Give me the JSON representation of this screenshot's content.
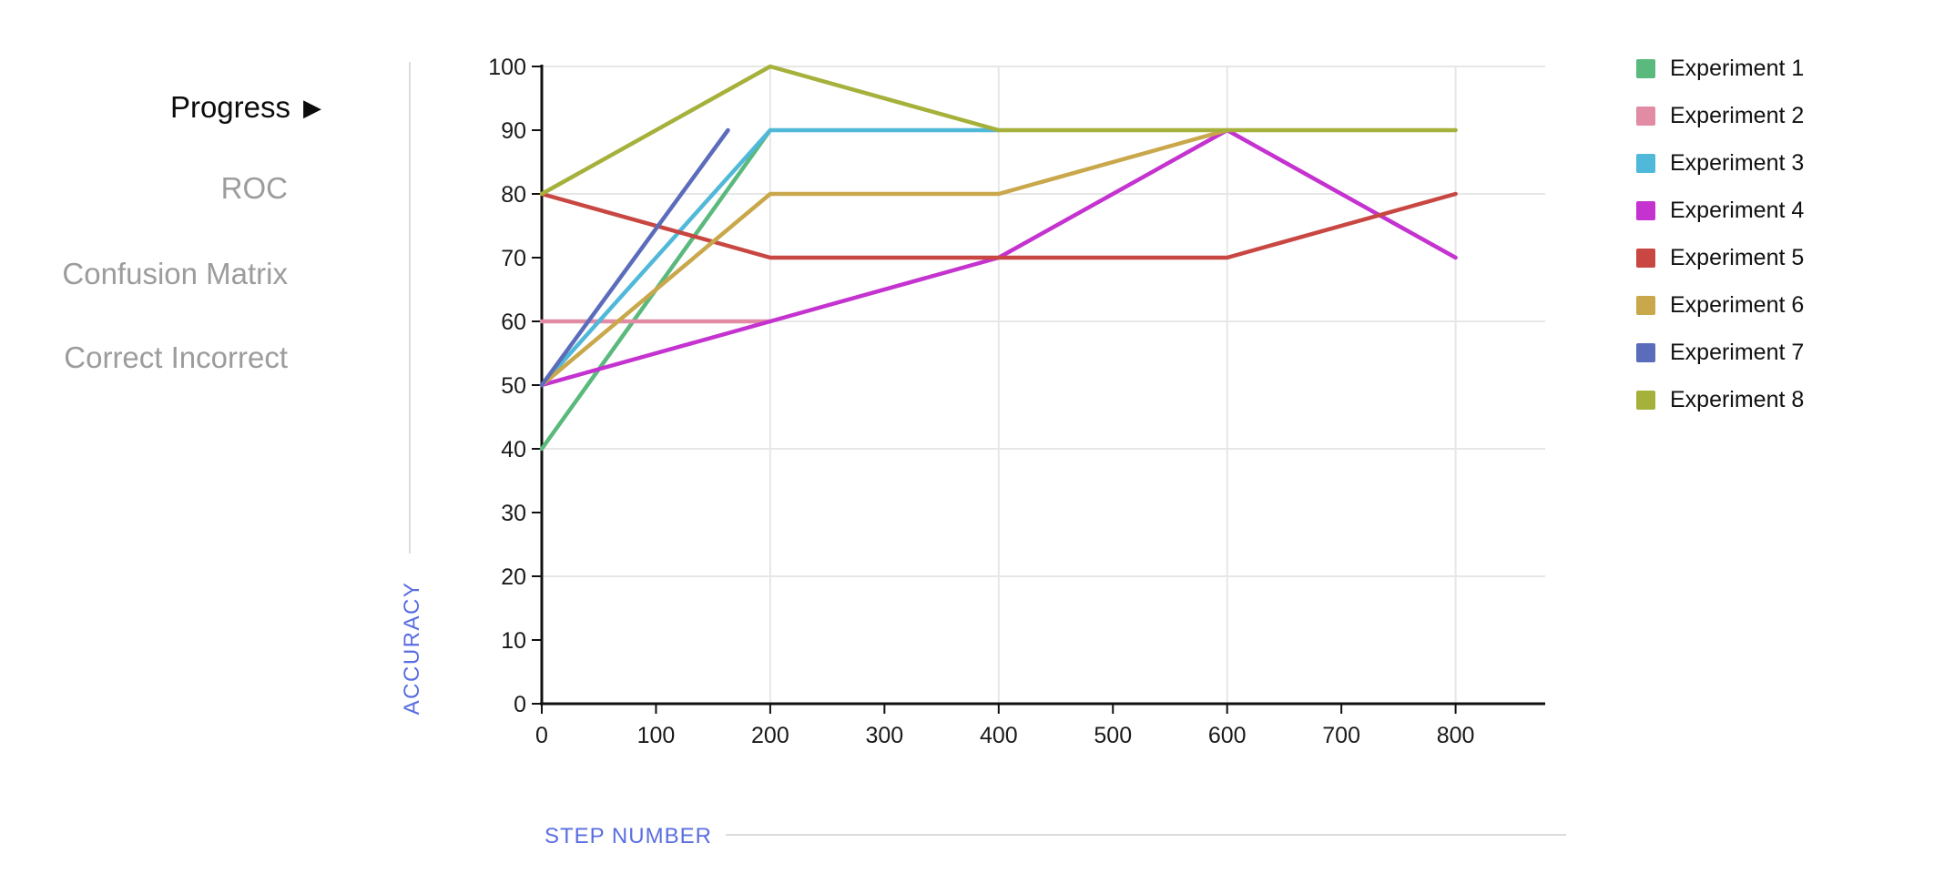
{
  "sidebar": {
    "arrow_glyph": "▶",
    "items": [
      {
        "label": "Progress",
        "active": true
      },
      {
        "label": "ROC",
        "active": false
      },
      {
        "label": "Confusion Matrix",
        "active": false
      },
      {
        "label": "Correct Incorrect",
        "active": false
      }
    ]
  },
  "axes": {
    "y_title": "ACCURACY",
    "x_title": "STEP NUMBER"
  },
  "chart_data": {
    "type": "line",
    "title": "",
    "xlabel": "STEP NUMBER",
    "ylabel": "ACCURACY",
    "xlim": [
      0,
      878
    ],
    "ylim": [
      0,
      100
    ],
    "x_ticks": [
      0,
      100,
      200,
      300,
      400,
      500,
      600,
      700,
      800
    ],
    "y_ticks": [
      0,
      10,
      20,
      30,
      40,
      50,
      60,
      70,
      80,
      90,
      100
    ],
    "grid_x": [
      200,
      400,
      600,
      800
    ],
    "grid_y": [
      20,
      40,
      60,
      80,
      100
    ],
    "legend_position": "right",
    "series": [
      {
        "name": "Experiment 1",
        "color": "#5ab97c",
        "points": [
          [
            0,
            40
          ],
          [
            200,
            90
          ]
        ]
      },
      {
        "name": "Experiment 2",
        "color": "#e18ba4",
        "points": [
          [
            0,
            60
          ],
          [
            200,
            60
          ]
        ]
      },
      {
        "name": "Experiment 3",
        "color": "#50b8d8",
        "points": [
          [
            0,
            50
          ],
          [
            200,
            90
          ],
          [
            400,
            90
          ]
        ]
      },
      {
        "name": "Experiment 4",
        "color": "#c433cf",
        "points": [
          [
            0,
            50
          ],
          [
            200,
            60
          ],
          [
            400,
            70
          ],
          [
            600,
            90
          ],
          [
            800,
            70
          ]
        ]
      },
      {
        "name": "Experiment 5",
        "color": "#c84742",
        "points": [
          [
            0,
            80
          ],
          [
            200,
            70
          ],
          [
            400,
            70
          ],
          [
            600,
            70
          ],
          [
            800,
            80
          ]
        ]
      },
      {
        "name": "Experiment 6",
        "color": "#c9a74b",
        "points": [
          [
            0,
            50
          ],
          [
            200,
            80
          ],
          [
            400,
            80
          ],
          [
            600,
            90
          ]
        ]
      },
      {
        "name": "Experiment 7",
        "color": "#5b6cbb",
        "points": [
          [
            0,
            50
          ],
          [
            163,
            90
          ]
        ]
      },
      {
        "name": "Experiment 8",
        "color": "#a5b13a",
        "points": [
          [
            0,
            80
          ],
          [
            200,
            100
          ],
          [
            400,
            90
          ],
          [
            600,
            90
          ],
          [
            800,
            90
          ]
        ]
      }
    ]
  }
}
